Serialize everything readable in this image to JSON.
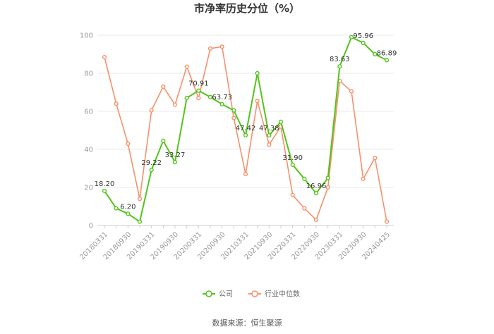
{
  "chart_data": {
    "type": "line",
    "title": "市净率历史分位（%）",
    "source": "数据来源：恒生聚源",
    "ylim": [
      0,
      100
    ],
    "yticks": [
      0,
      20,
      40,
      60,
      80,
      100
    ],
    "grid": true,
    "legend_position": "bottom",
    "x": [
      "20180331",
      "20180630",
      "20180930",
      "20181231",
      "20190331",
      "20190630",
      "20190930",
      "20191231",
      "20200331",
      "20200630",
      "20200930",
      "20201231",
      "20210331",
      "20210630",
      "20210930",
      "20211231",
      "20220331",
      "20220630",
      "20220930",
      "20221231",
      "20230331",
      "20230630",
      "20230930",
      "20231231",
      "20240425"
    ],
    "xtick_labels": [
      "20180331",
      "20180930",
      "20190331",
      "20190930",
      "20200331",
      "20200930",
      "20210331",
      "20210930",
      "20220331",
      "20220930",
      "20230331",
      "20230930",
      "20240425"
    ],
    "series": [
      {
        "name": "公司",
        "color": "#52c41a",
        "values": [
          18.2,
          9,
          6.2,
          2,
          29.22,
          44.5,
          33.27,
          67,
          70.91,
          67.5,
          63.73,
          60.5,
          47.42,
          80,
          47.38,
          54.5,
          31.9,
          24.5,
          16.96,
          25,
          83.63,
          99,
          95.96,
          90,
          86.89
        ]
      },
      {
        "name": "行业中位数",
        "color": "#f5916b",
        "values": [
          88.5,
          64,
          43,
          14,
          60.5,
          73,
          63.5,
          83.5,
          67,
          93,
          94,
          56.5,
          27,
          65.5,
          42.5,
          52,
          16,
          9,
          3,
          20,
          76,
          70.5,
          24.5,
          35.5,
          2
        ]
      }
    ],
    "data_labels": [
      {
        "series": 0,
        "index": 0,
        "text": "18.20"
      },
      {
        "series": 0,
        "index": 2,
        "text": "6.20"
      },
      {
        "series": 0,
        "index": 4,
        "text": "29.22"
      },
      {
        "series": 0,
        "index": 6,
        "text": "33.27"
      },
      {
        "series": 0,
        "index": 8,
        "text": "70.91"
      },
      {
        "series": 0,
        "index": 10,
        "text": "63.73"
      },
      {
        "series": 0,
        "index": 12,
        "text": "47.42"
      },
      {
        "series": 0,
        "index": 14,
        "text": "47.38"
      },
      {
        "series": 0,
        "index": 16,
        "text": "31.90"
      },
      {
        "series": 0,
        "index": 18,
        "text": "16.96"
      },
      {
        "series": 0,
        "index": 20,
        "text": "83.63"
      },
      {
        "series": 0,
        "index": 22,
        "text": "95.96"
      },
      {
        "series": 0,
        "index": 24,
        "text": "86.89"
      }
    ]
  }
}
